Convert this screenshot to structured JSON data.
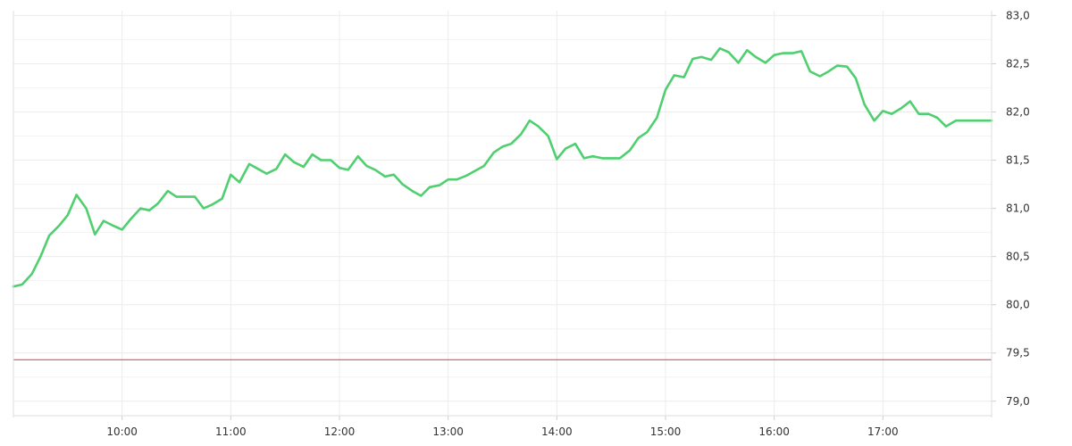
{
  "chart_data": {
    "type": "line",
    "x_ticks": [
      "10:00",
      "11:00",
      "12:00",
      "13:00",
      "14:00",
      "15:00",
      "16:00",
      "17:00"
    ],
    "y_ticks": [
      "79,0",
      "79,5",
      "80,0",
      "80,5",
      "81,0",
      "81,5",
      "82,0",
      "82,5",
      "83,0"
    ],
    "ylim": [
      78.85,
      83.05
    ],
    "x_range_hours": [
      9.0,
      18.0
    ],
    "grid": true,
    "axis_side": "right",
    "reference_line": {
      "value": 79.43,
      "color": "#e05050"
    },
    "series": [
      {
        "color": "#4fcf70",
        "x": [
          9.0,
          9.08,
          9.17,
          9.25,
          9.33,
          9.42,
          9.5,
          9.58,
          9.67,
          9.75,
          9.83,
          9.92,
          10.0,
          10.08,
          10.17,
          10.25,
          10.33,
          10.42,
          10.5,
          10.58,
          10.67,
          10.75,
          10.83,
          10.92,
          11.0,
          11.08,
          11.17,
          11.25,
          11.33,
          11.42,
          11.5,
          11.58,
          11.67,
          11.75,
          11.83,
          11.92,
          12.0,
          12.08,
          12.17,
          12.25,
          12.33,
          12.42,
          12.5,
          12.58,
          12.67,
          12.75,
          12.83,
          12.92,
          13.0,
          13.08,
          13.17,
          13.25,
          13.33,
          13.42,
          13.5,
          13.58,
          13.67,
          13.75,
          13.83,
          13.92,
          14.0,
          14.08,
          14.17,
          14.25,
          14.33,
          14.42,
          14.5,
          14.58,
          14.67,
          14.75,
          14.83,
          14.92,
          15.0,
          15.08,
          15.17,
          15.25,
          15.33,
          15.42,
          15.5,
          15.58,
          15.67,
          15.75,
          15.83,
          15.92,
          16.0,
          16.08,
          16.17,
          16.25,
          16.33,
          16.42,
          16.5,
          16.58,
          16.67,
          16.75,
          16.83,
          16.92,
          17.0,
          17.08,
          17.17,
          17.25,
          17.33,
          17.42,
          17.5,
          17.58,
          17.67,
          17.75,
          17.83,
          17.92,
          18.0
        ],
        "values": [
          80.19,
          80.21,
          80.32,
          80.5,
          80.72,
          80.82,
          80.93,
          81.14,
          81.0,
          80.73,
          80.87,
          80.82,
          80.78,
          80.89,
          81.0,
          80.98,
          81.05,
          81.18,
          81.12,
          81.12,
          81.12,
          81.0,
          81.04,
          81.1,
          81.35,
          81.27,
          81.46,
          81.41,
          81.36,
          81.41,
          81.56,
          81.48,
          81.43,
          81.56,
          81.5,
          81.5,
          81.42,
          81.4,
          81.54,
          81.44,
          81.4,
          81.33,
          81.35,
          81.25,
          81.18,
          81.13,
          81.22,
          81.24,
          81.3,
          81.3,
          81.34,
          81.39,
          81.44,
          81.58,
          81.64,
          81.67,
          81.77,
          81.91,
          81.85,
          81.75,
          81.51,
          81.62,
          81.67,
          81.52,
          81.54,
          81.52,
          81.52,
          81.52,
          81.6,
          81.73,
          81.79,
          81.94,
          82.23,
          82.38,
          82.36,
          82.55,
          82.57,
          82.54,
          82.66,
          82.62,
          82.51,
          82.64,
          82.57,
          82.51,
          82.59,
          82.61,
          82.61,
          82.63,
          82.42,
          82.37,
          82.42,
          82.48,
          82.47,
          82.35,
          82.08,
          81.91,
          82.01,
          81.98,
          82.04,
          82.11,
          81.98,
          81.98,
          81.94,
          81.85,
          81.91,
          81.91,
          81.91,
          81.91,
          81.91
        ]
      }
    ]
  }
}
